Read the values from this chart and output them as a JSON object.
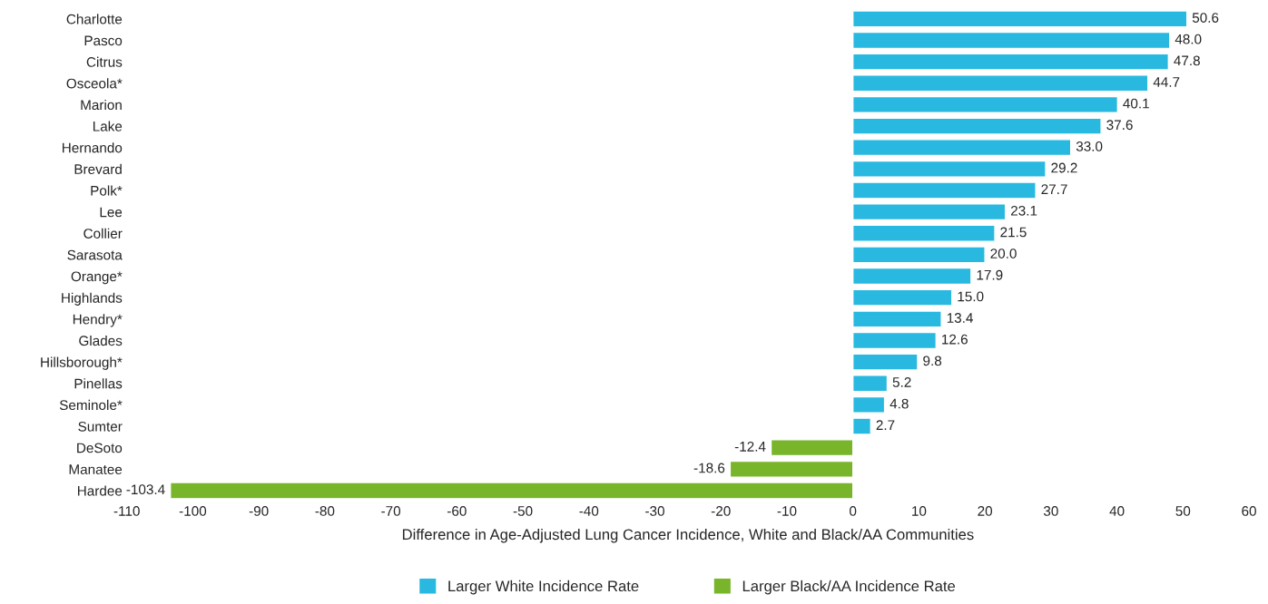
{
  "chart_data": {
    "type": "bar",
    "orientation": "horizontal",
    "xlabel": "Difference in Age-Adjusted Lung Cancer Incidence, White and Black/AA Communities",
    "categories": [
      "Charlotte",
      "Pasco",
      "Citrus",
      "Osceola*",
      "Marion",
      "Lake",
      "Hernando",
      "Brevard",
      "Polk*",
      "Lee",
      "Collier",
      "Sarasota",
      "Orange*",
      "Highlands",
      "Hendry*",
      "Glades",
      "Hillsborough*",
      "Pinellas",
      "Seminole*",
      "Sumter",
      "DeSoto",
      "Manatee",
      "Hardee"
    ],
    "series": [
      {
        "name": "Larger White Incidence Rate",
        "color": "#29b9e0",
        "values": [
          50.6,
          48,
          47.8,
          44.7,
          40.1,
          37.6,
          33,
          29.2,
          27.7,
          23.1,
          21.5,
          20,
          17.9,
          15,
          13.4,
          12.6,
          9.8,
          5.2,
          4.8,
          2.7,
          null,
          null,
          null
        ],
        "value_labels": [
          "50.6",
          "48.0",
          "47.8",
          "44.7",
          "40.1",
          "37.6",
          "33.0",
          "29.2",
          "27.7",
          "23.1",
          "21.5",
          "20.0",
          "17.9",
          "15.0",
          "13.4",
          "12.6",
          "9.8",
          "5.2",
          "4.8",
          "2.7",
          null,
          null,
          null
        ]
      },
      {
        "name": "Larger Black/AA Incidence Rate",
        "color": "#78b52a",
        "values": [
          null,
          null,
          null,
          null,
          null,
          null,
          null,
          null,
          null,
          null,
          null,
          null,
          null,
          null,
          null,
          null,
          null,
          null,
          null,
          null,
          -12.4,
          -18.6,
          -103.4
        ],
        "value_labels": [
          null,
          null,
          null,
          null,
          null,
          null,
          null,
          null,
          null,
          null,
          null,
          null,
          null,
          null,
          null,
          null,
          null,
          null,
          null,
          null,
          "-12.4",
          "-18.6",
          "-103.4"
        ]
      }
    ],
    "xlim": [
      -110,
      60
    ],
    "xticks": [
      -110,
      -100,
      -90,
      -80,
      -70,
      -60,
      -50,
      -40,
      -30,
      -20,
      -10,
      0,
      10,
      20,
      30,
      40,
      50,
      60
    ],
    "grid": false,
    "legend": "bottom"
  }
}
